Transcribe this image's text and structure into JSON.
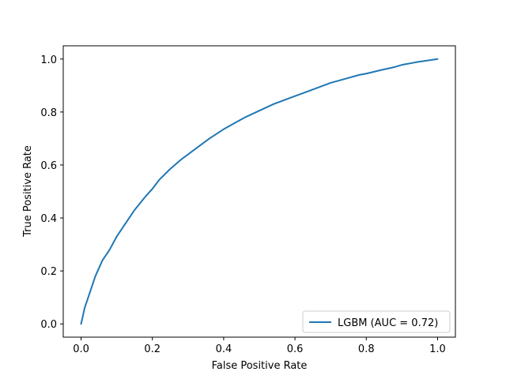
{
  "chart_data": {
    "type": "line",
    "title": "",
    "xlabel": "False Positive Rate",
    "ylabel": "True Positive Rate",
    "xlim": [
      -0.05,
      1.05
    ],
    "ylim": [
      -0.05,
      1.05
    ],
    "xticks": [
      0.0,
      0.2,
      0.4,
      0.6,
      0.8,
      1.0
    ],
    "yticks": [
      0.0,
      0.2,
      0.4,
      0.6,
      0.8,
      1.0
    ],
    "xtick_labels": [
      "0.0",
      "0.2",
      "0.4",
      "0.6",
      "0.8",
      "1.0"
    ],
    "ytick_labels": [
      "0.0",
      "0.2",
      "0.4",
      "0.6",
      "0.8",
      "1.0"
    ],
    "grid": false,
    "legend_position": "lower-right",
    "series": [
      {
        "name": "LGBM (AUC = 0.72)",
        "color": "#1f77b4",
        "x": [
          0.0,
          0.005,
          0.01,
          0.02,
          0.03,
          0.04,
          0.05,
          0.06,
          0.08,
          0.1,
          0.12,
          0.15,
          0.18,
          0.2,
          0.22,
          0.25,
          0.28,
          0.3,
          0.33,
          0.36,
          0.4,
          0.43,
          0.46,
          0.5,
          0.54,
          0.58,
          0.6,
          0.64,
          0.68,
          0.7,
          0.74,
          0.78,
          0.8,
          0.84,
          0.88,
          0.9,
          0.94,
          0.97,
          1.0
        ],
        "y": [
          0.0,
          0.03,
          0.06,
          0.1,
          0.14,
          0.18,
          0.21,
          0.24,
          0.28,
          0.33,
          0.37,
          0.43,
          0.48,
          0.51,
          0.545,
          0.585,
          0.62,
          0.64,
          0.67,
          0.7,
          0.735,
          0.758,
          0.78,
          0.805,
          0.83,
          0.85,
          0.86,
          0.88,
          0.9,
          0.91,
          0.925,
          0.94,
          0.945,
          0.958,
          0.97,
          0.978,
          0.988,
          0.994,
          1.0
        ]
      }
    ]
  }
}
